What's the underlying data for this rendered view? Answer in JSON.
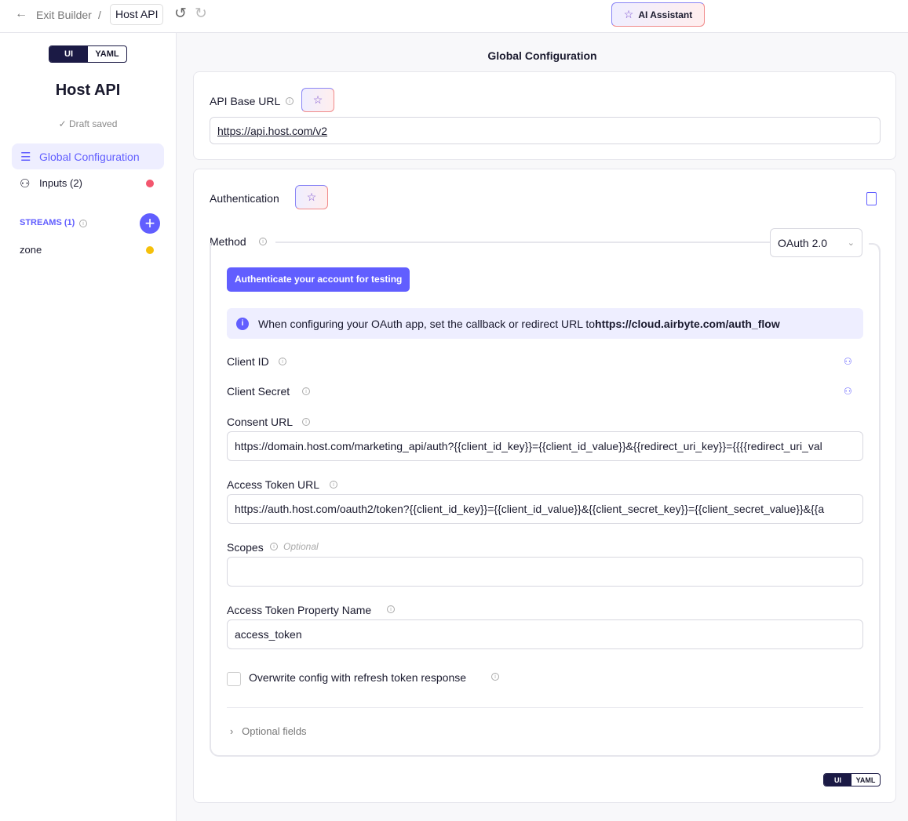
{
  "topbar": {
    "exit_label": "Exit Builder",
    "separator": "/",
    "connector_name": "Host API",
    "ai_assistant_label": "AI Assistant"
  },
  "sidebar": {
    "toggle": {
      "ui": "UI",
      "yaml": "YAML",
      "selected": "UI"
    },
    "title": "Host API",
    "status": "Draft saved",
    "nav": [
      {
        "label": "Global Configuration",
        "active": true
      },
      {
        "label": "Inputs (2)",
        "status_color": "#f3566e"
      }
    ],
    "streams_label": "STREAMS (1)",
    "streams": [
      {
        "name": "zone",
        "status_color": "#f5c00a"
      }
    ]
  },
  "main": {
    "heading": "Global Configuration",
    "api_base_url": {
      "label": "API Base URL",
      "value": "https://api.host.com/v2"
    },
    "auth": {
      "label": "Authentication",
      "method_label": "Method",
      "method_value": "OAuth 2.0",
      "authenticate_button": "Authenticate your account for testing",
      "callout_text": "When configuring your OAuth app, set the callback or redirect URL to ",
      "callout_url": "https://cloud.airbyte.com/auth_flow",
      "client_id_label": "Client ID",
      "client_secret_label": "Client Secret",
      "consent_url_label": "Consent URL",
      "consent_url_value": "https://domain.host.com/marketing_api/auth?{{client_id_key}}={{client_id_value}}&{{redirect_uri_key}}={{{{redirect_uri_val",
      "access_token_url_label": "Access Token URL",
      "access_token_url_value": "https://auth.host.com/oauth2/token?{{client_id_key}}={{client_id_value}}&{{client_secret_key}}={{client_secret_value}}&{{a",
      "scopes_label": "Scopes",
      "scopes_optional": "Optional",
      "scopes_value": "",
      "token_prop_label": "Access Token Property Name",
      "token_prop_value": "access_token",
      "overwrite_label": "Overwrite config with refresh token response",
      "overwrite_checked": false,
      "optional_fields_label": "Optional fields"
    },
    "bottom_toggle": {
      "ui": "UI",
      "yaml": "YAML",
      "selected": "UI"
    }
  },
  "colors": {
    "accent": "#615eff",
    "nav_bg": "#eeeeff",
    "dark": "#1b1a45"
  }
}
